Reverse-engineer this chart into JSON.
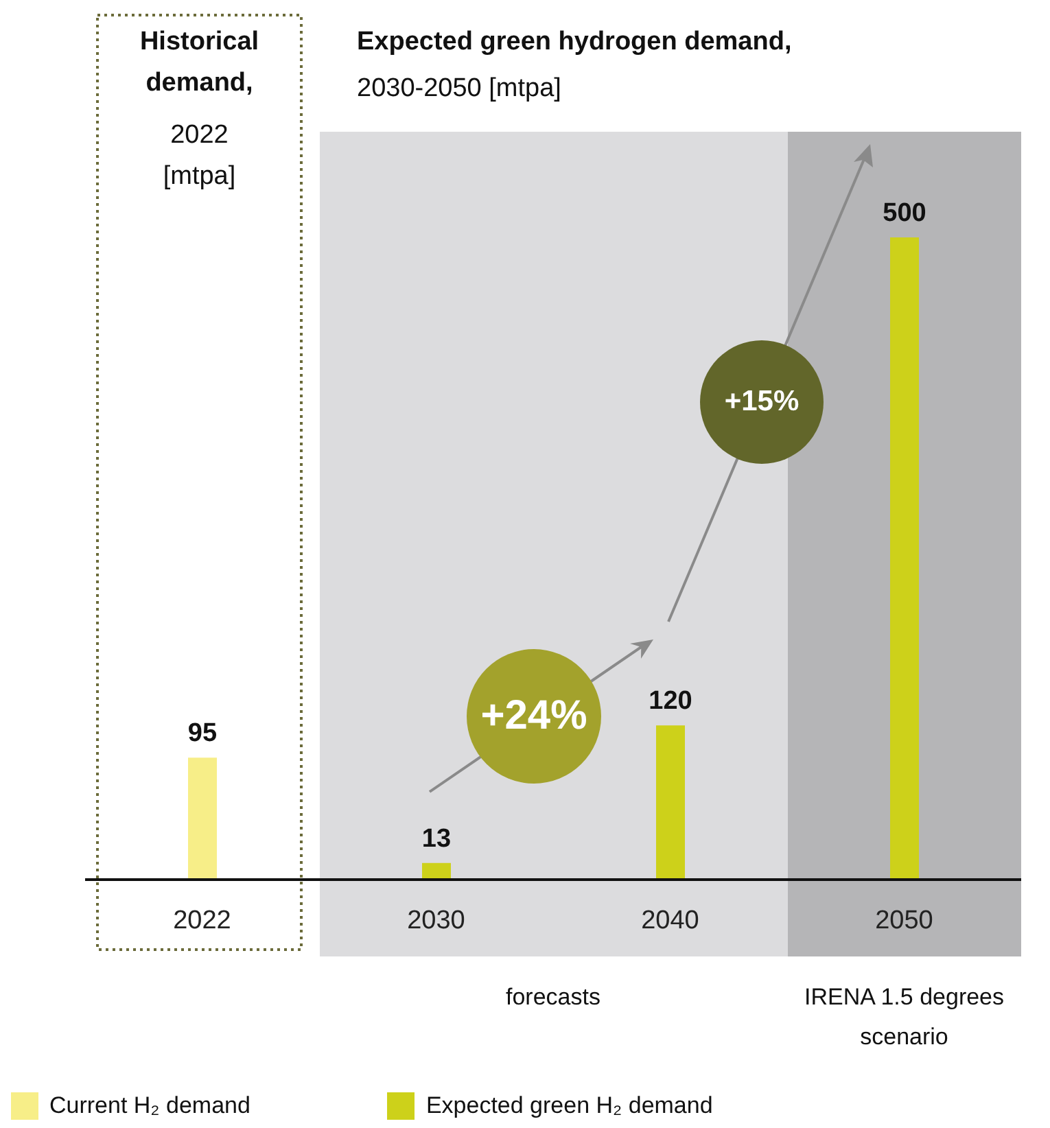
{
  "chart_data": {
    "type": "bar",
    "title": "Expected green hydrogen demand,",
    "subtitle": "2030-2050 [mtpa]",
    "categories": [
      "2022",
      "2030",
      "2040",
      "2050"
    ],
    "series": [
      {
        "name": "Current H₂ demand",
        "color": "#f7ee88",
        "values": [
          95,
          null,
          null,
          null
        ]
      },
      {
        "name": "Expected green H₂ demand",
        "color": "#cdd11a",
        "values": [
          null,
          13,
          120,
          500
        ]
      }
    ],
    "stacked": true,
    "data_labels": true,
    "tick_labels": "x",
    "legend": "bottom",
    "bands": [
      {
        "axis": "x",
        "from": "2030",
        "to": "2040",
        "label": "forecasts",
        "color": "#dcdcde"
      },
      {
        "axis": "x",
        "from": "2050",
        "to": "2050",
        "label": "IRENA 1.5 degrees scenario",
        "color": "#b5b5b7"
      }
    ],
    "annotations": [
      "Historical demand,",
      "2022 [mtpa]",
      "+24%",
      "+15%"
    ]
  }
}
